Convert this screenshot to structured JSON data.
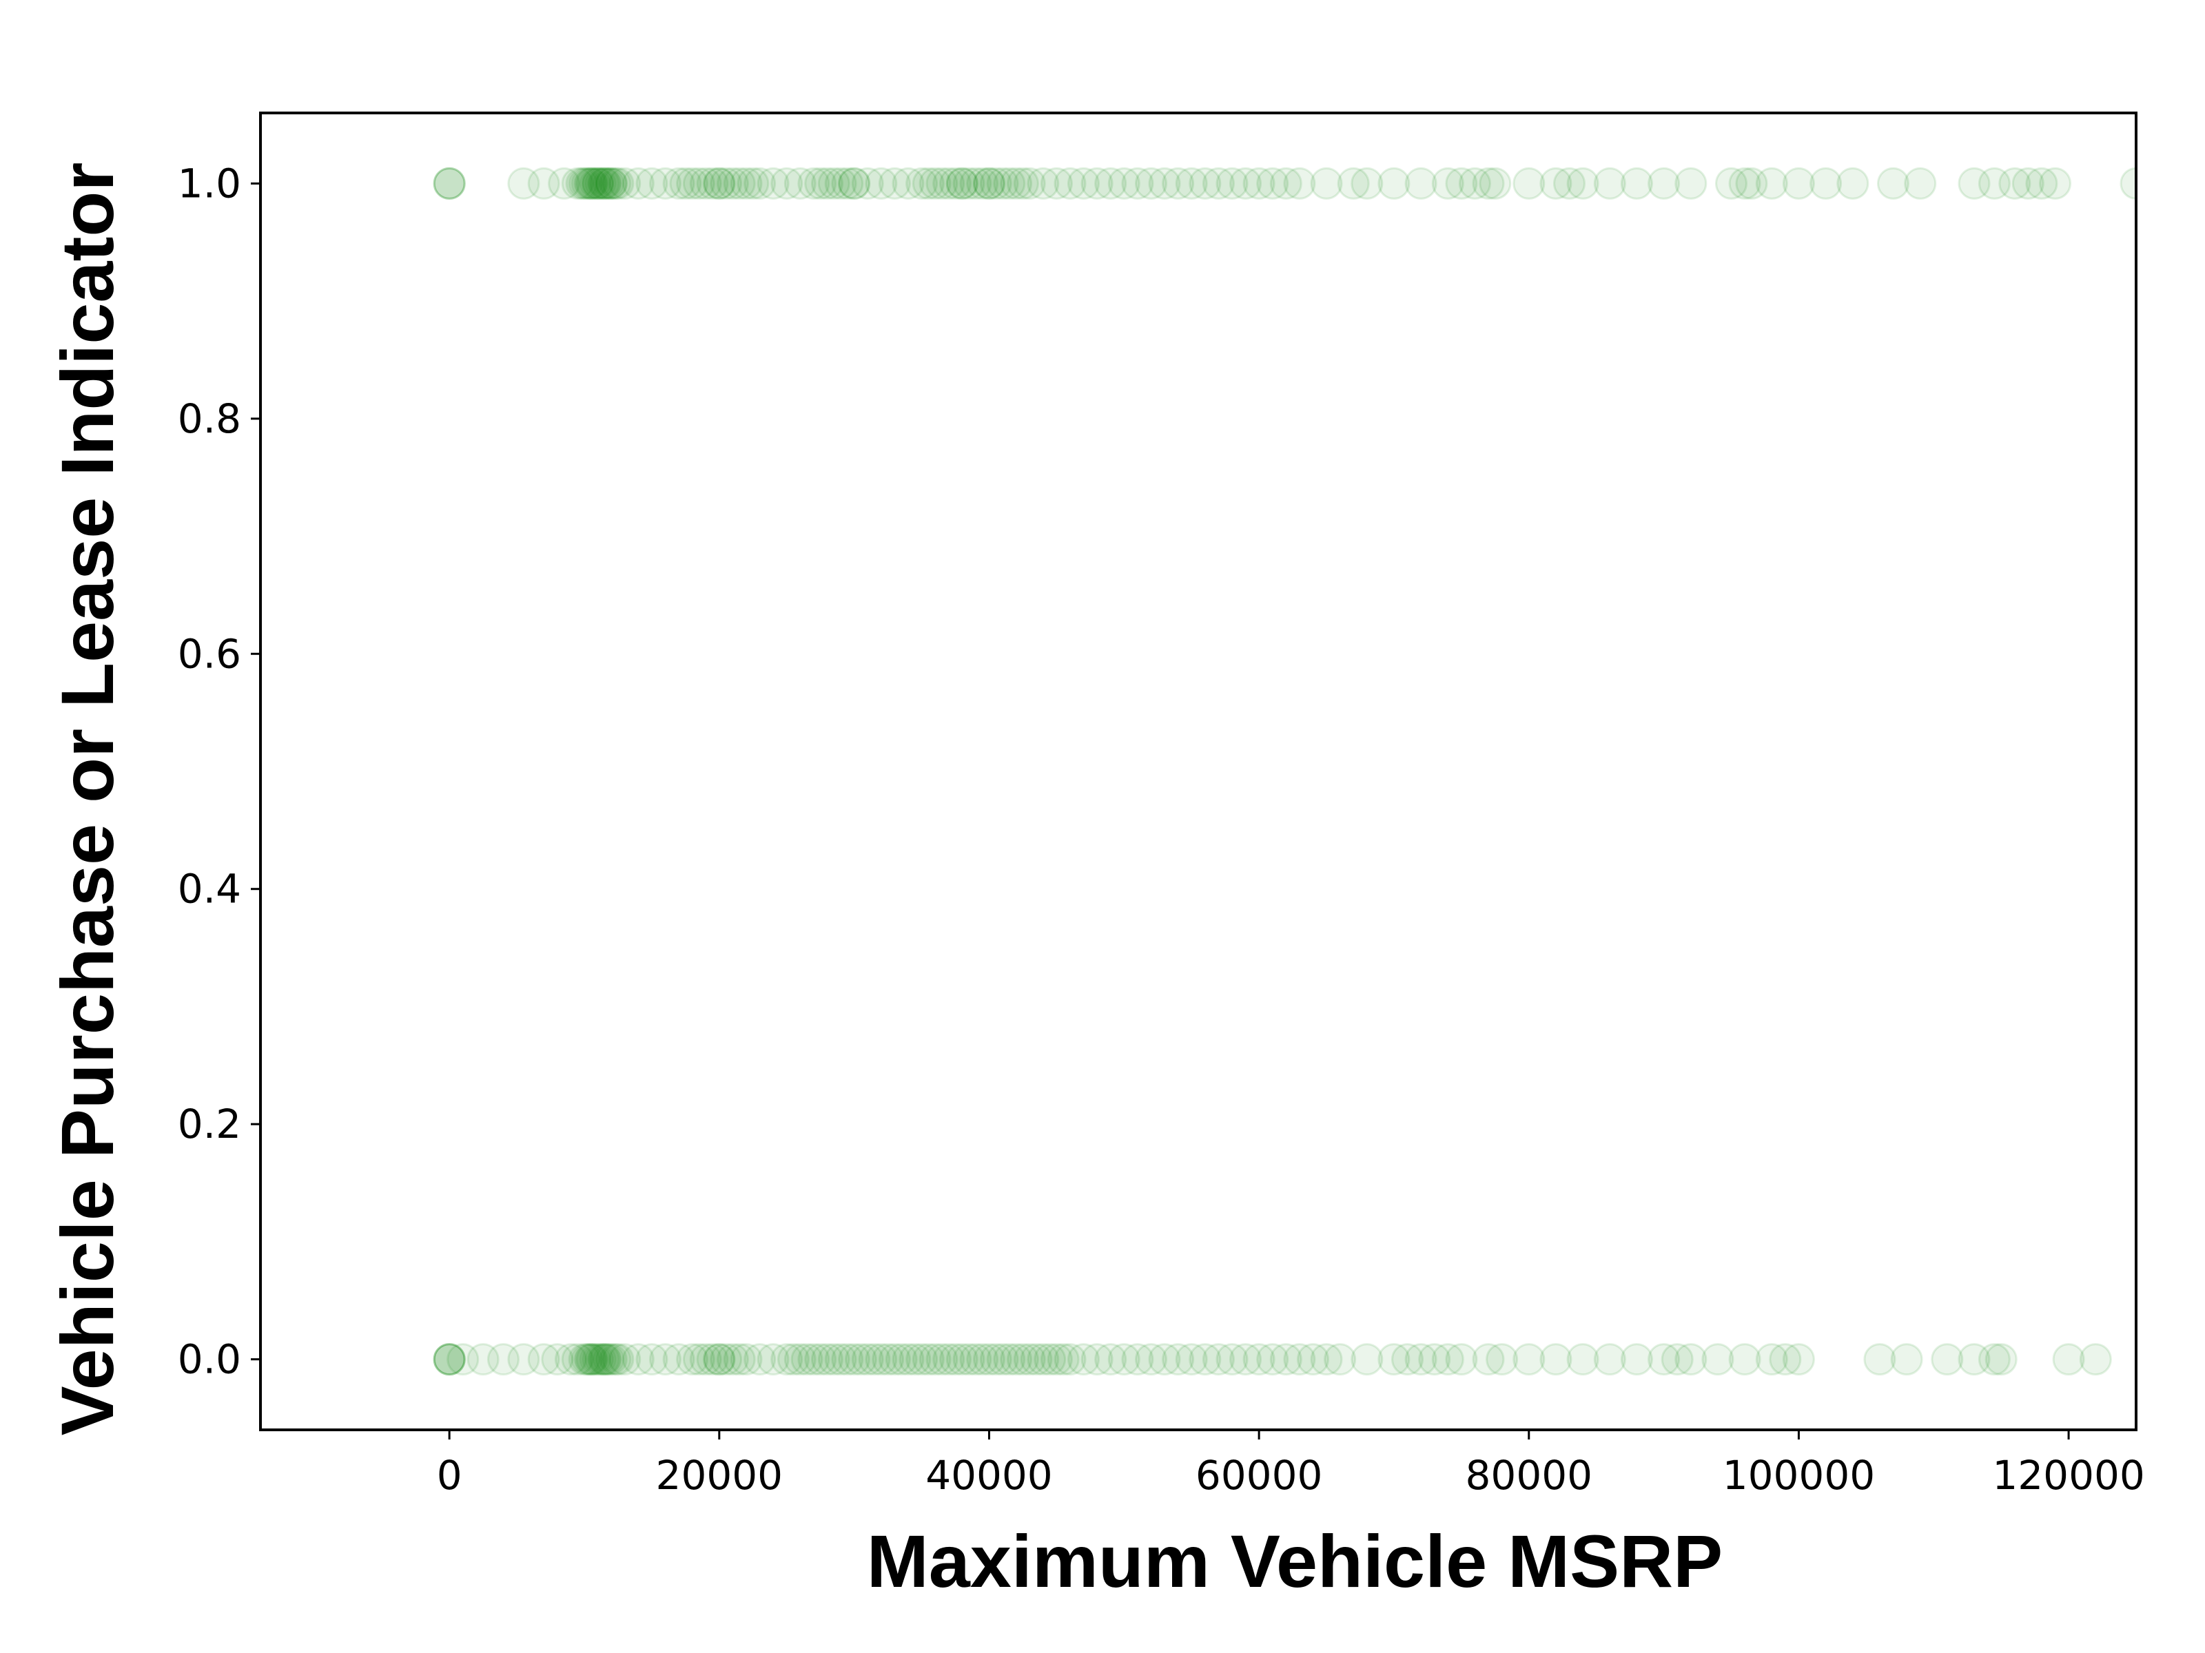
{
  "chart_data": {
    "type": "scatter",
    "title": "",
    "xlabel": "Maximum Vehicle MSRP",
    "ylabel": "Vehicle Purchase or Lease Indicator",
    "xlim": [
      -14000,
      125000
    ],
    "ylim": [
      -0.06,
      1.06
    ],
    "xticks": [
      "0",
      "20000",
      "40000",
      "60000",
      "80000",
      "100000",
      "120000"
    ],
    "xtick_values": [
      0,
      20000,
      40000,
      60000,
      80000,
      100000,
      120000
    ],
    "yticks": [
      "0.0",
      "0.2",
      "0.4",
      "0.6",
      "0.8",
      "1.0"
    ],
    "ytick_values": [
      0.0,
      0.2,
      0.4,
      0.6,
      0.8,
      1.0
    ],
    "grid": false,
    "legend": "none",
    "marker_color": "#008000",
    "marker_alpha": 0.08,
    "series": [
      {
        "y": 1.0,
        "x": [
          0,
          0,
          0,
          5500,
          7000,
          8500,
          9500,
          9800,
          10000,
          10200,
          10400,
          10500,
          10600,
          10800,
          11000,
          11000,
          11200,
          11400,
          11500,
          11600,
          11800,
          12000,
          12000,
          12300,
          12500,
          13000,
          14000,
          15000,
          16000,
          17000,
          17500,
          18000,
          18500,
          19000,
          19500,
          20000,
          20000,
          20500,
          21000,
          21500,
          22000,
          22500,
          23000,
          24000,
          25000,
          26000,
          27000,
          27500,
          28000,
          28500,
          29000,
          29500,
          30000,
          30000,
          31000,
          32000,
          33000,
          34000,
          35000,
          35500,
          36000,
          36500,
          37000,
          37500,
          38000,
          38000,
          38500,
          39000,
          39500,
          40000,
          40000,
          40500,
          41000,
          41500,
          42000,
          42500,
          43000,
          44000,
          45000,
          46000,
          47000,
          48000,
          49000,
          50000,
          51000,
          52000,
          53000,
          54000,
          55000,
          56000,
          57000,
          58000,
          59000,
          60000,
          61000,
          62000,
          63000,
          65000,
          67000,
          68000,
          70000,
          72000,
          74000,
          75000,
          76000,
          77000,
          77500,
          80000,
          82000,
          83000,
          84000,
          86000,
          88000,
          90000,
          92000,
          95000,
          96000,
          96500,
          98000,
          100000,
          102000,
          104000,
          107000,
          109000,
          113000,
          114500,
          116000,
          117000,
          118000,
          119000,
          125000
        ]
      },
      {
        "y": 0.0,
        "x": [
          0,
          0,
          0,
          0,
          1000,
          2500,
          4000,
          5500,
          7000,
          8000,
          9000,
          9500,
          10000,
          10200,
          10400,
          10500,
          10600,
          10800,
          11000,
          11200,
          11400,
          11500,
          11600,
          11800,
          12000,
          12300,
          12500,
          13000,
          14000,
          15000,
          16000,
          17000,
          18000,
          18500,
          19000,
          19500,
          20000,
          20000,
          20500,
          21000,
          21500,
          22000,
          23000,
          24000,
          25000,
          25500,
          26000,
          26500,
          27000,
          27500,
          28000,
          28500,
          29000,
          29500,
          30000,
          30500,
          31000,
          31500,
          32000,
          32500,
          33000,
          33500,
          34000,
          34500,
          35000,
          35500,
          36000,
          36500,
          37000,
          37500,
          38000,
          38500,
          39000,
          39500,
          40000,
          40500,
          41000,
          41500,
          42000,
          42500,
          43000,
          43500,
          44000,
          44500,
          45000,
          45500,
          46000,
          47000,
          48000,
          49000,
          50000,
          51000,
          52000,
          53000,
          54000,
          55000,
          56000,
          57000,
          58000,
          59000,
          60000,
          61000,
          62000,
          63000,
          64000,
          65000,
          66000,
          68000,
          70000,
          71000,
          72000,
          73000,
          74000,
          75000,
          77000,
          78000,
          80000,
          82000,
          84000,
          86000,
          88000,
          90000,
          91000,
          92000,
          94000,
          96000,
          98000,
          99000,
          100000,
          106000,
          108000,
          111000,
          113000,
          114500,
          115000,
          120000,
          122000
        ]
      }
    ]
  }
}
